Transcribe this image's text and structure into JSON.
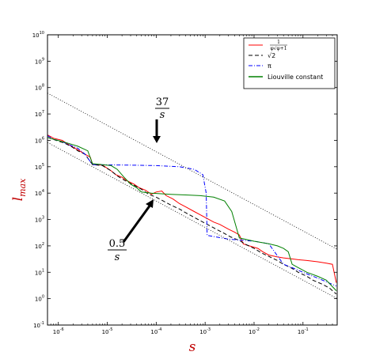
{
  "chart_data": {
    "type": "line",
    "title": "",
    "xlabel": "s",
    "ylabel": "l_max",
    "xscale": "log",
    "yscale": "log",
    "xlim": [
      6e-07,
      0.5
    ],
    "ylim": [
      0.1,
      10000000000.0
    ],
    "grid": false,
    "legend_position": "top-right",
    "x_tick_labels": [
      "10-6",
      "10-5",
      "10-4",
      "10-3",
      "10-2",
      "10-1"
    ],
    "y_tick_labels": [
      "10-1",
      "100",
      "101",
      "102",
      "103",
      "104",
      "105",
      "106",
      "107",
      "108",
      "109",
      "1010"
    ],
    "series": [
      {
        "name": "1/(φ√(φ+1))",
        "color": "#ff0000",
        "style": "solid",
        "points": [
          [
            6e-07,
            1600000.0
          ],
          [
            8e-07,
            1200000.0
          ],
          [
            1.2e-06,
            1000000.0
          ],
          [
            1.6e-06,
            700000.0
          ],
          [
            2e-06,
            550000.0
          ],
          [
            2.7e-06,
            400000.0
          ],
          [
            3.5e-06,
            300000.0
          ],
          [
            4.5e-06,
            230000.0
          ],
          [
            5e-06,
            120000.0
          ],
          [
            8e-06,
            115000.0
          ],
          [
            1.2e-05,
            70000.0
          ],
          [
            1.5e-05,
            50000.0
          ],
          [
            2e-05,
            40000.0
          ],
          [
            2.5e-05,
            30000.0
          ],
          [
            3.5e-05,
            22000.0
          ],
          [
            4.5e-05,
            16000.0
          ],
          [
            6e-05,
            13000.0
          ],
          [
            8e-05,
            9000.0
          ],
          [
            0.0001,
            11000.0
          ],
          [
            0.00013,
            12000.0
          ],
          [
            0.00016,
            8000.0
          ],
          [
            0.00022,
            6000.0
          ],
          [
            0.0003,
            4000.0
          ],
          [
            0.0004,
            3000.0
          ],
          [
            0.0006,
            2000.0
          ],
          [
            0.0008,
            1500.0
          ],
          [
            0.001,
            1200.0
          ],
          [
            0.0015,
            800
          ],
          [
            0.002,
            650
          ],
          [
            0.003,
            430
          ],
          [
            0.004,
            330
          ],
          [
            0.005,
            260
          ],
          [
            0.006,
            120
          ],
          [
            0.008,
            100
          ],
          [
            0.012,
            80
          ],
          [
            0.015,
            60
          ],
          [
            0.02,
            45
          ],
          [
            0.03,
            38
          ],
          [
            0.04,
            35
          ],
          [
            0.06,
            32
          ],
          [
            0.08,
            30
          ],
          [
            0.12,
            28
          ],
          [
            0.2,
            25
          ],
          [
            0.3,
            22
          ],
          [
            0.4,
            20
          ],
          [
            0.48,
            4
          ]
        ]
      },
      {
        "name": "√2",
        "color": "#000000",
        "style": "dashed",
        "points": [
          [
            6e-07,
            1300000.0
          ],
          [
            9e-07,
            1000000.0
          ],
          [
            1.3e-06,
            800000.0
          ],
          [
            1.8e-06,
            600000.0
          ],
          [
            2.5e-06,
            400000.0
          ],
          [
            3.5e-06,
            300000.0
          ],
          [
            5e-06,
            120000.0
          ],
          [
            8e-06,
            110000.0
          ],
          [
            1.2e-05,
            70000.0
          ],
          [
            1.6e-05,
            45000.0
          ],
          [
            2.3e-05,
            30000.0
          ],
          [
            3.5e-05,
            20000.0
          ],
          [
            5e-05,
            14000.0
          ],
          [
            7e-05,
            9000.0
          ],
          [
            0.0001,
            7000.0
          ],
          [
            0.00014,
            5000.0
          ],
          [
            0.0002,
            3500.0
          ],
          [
            0.0003,
            2500.0
          ],
          [
            0.0004,
            1800.0
          ],
          [
            0.0006,
            1200.0
          ],
          [
            0.0008,
            900
          ],
          [
            0.0012,
            600
          ],
          [
            0.0016,
            450
          ],
          [
            0.0023,
            320
          ],
          [
            0.0033,
            220
          ],
          [
            0.005,
            160
          ],
          [
            0.007,
            110
          ],
          [
            0.01,
            80
          ],
          [
            0.014,
            55
          ],
          [
            0.02,
            40
          ],
          [
            0.03,
            28
          ],
          [
            0.04,
            20
          ],
          [
            0.06,
            14
          ],
          [
            0.08,
            10
          ],
          [
            0.12,
            7
          ],
          [
            0.16,
            5
          ],
          [
            0.25,
            3.5
          ],
          [
            0.35,
            2.5
          ],
          [
            0.48,
            1.5
          ]
        ]
      },
      {
        "name": "π",
        "color": "#0000ff",
        "style": "dashdot",
        "points": [
          [
            6e-07,
            1500000.0
          ],
          [
            8e-07,
            1100000.0
          ],
          [
            1.2e-06,
            900000.0
          ],
          [
            1.6e-06,
            700000.0
          ],
          [
            2.5e-06,
            500000.0
          ],
          [
            3.5e-06,
            300000.0
          ],
          [
            5e-06,
            120000.0
          ],
          [
            3e-05,
            115000.0
          ],
          [
            0.0001,
            110000.0
          ],
          [
            0.0003,
            100000.0
          ],
          [
            0.0006,
            80000.0
          ],
          [
            0.0009,
            50000.0
          ],
          [
            0.00105,
            10000.0
          ],
          [
            0.0011,
            250
          ],
          [
            0.003,
            180
          ],
          [
            0.01,
            150
          ],
          [
            0.02,
            120
          ],
          [
            0.04,
            20
          ],
          [
            0.06,
            15
          ],
          [
            0.1,
            10
          ],
          [
            0.2,
            6
          ],
          [
            0.48,
            3
          ]
        ]
      },
      {
        "name": "Liouville constant",
        "color": "#008000",
        "style": "solid",
        "points": [
          [
            6e-07,
            1300000.0
          ],
          [
            8e-07,
            1100000.0
          ],
          [
            1.5e-06,
            800000.0
          ],
          [
            2.5e-06,
            600000.0
          ],
          [
            4e-06,
            400000.0
          ],
          [
            5e-06,
            130000.0
          ],
          [
            8e-06,
            120000.0
          ],
          [
            1.2e-05,
            110000.0
          ],
          [
            1.6e-05,
            80000.0
          ],
          [
            2.2e-05,
            40000.0
          ],
          [
            3e-05,
            22000.0
          ],
          [
            4e-05,
            16000.0
          ],
          [
            5e-05,
            11000.0
          ],
          [
            8e-05,
            10000.0
          ],
          [
            0.0002,
            9000.0
          ],
          [
            0.0004,
            8500.0
          ],
          [
            0.0008,
            8000.0
          ],
          [
            0.0015,
            7000.0
          ],
          [
            0.0025,
            5000.0
          ],
          [
            0.0035,
            2000.0
          ],
          [
            0.005,
            200
          ],
          [
            0.01,
            150
          ],
          [
            0.02,
            120
          ],
          [
            0.03,
            100
          ],
          [
            0.04,
            80
          ],
          [
            0.05,
            60
          ],
          [
            0.06,
            20
          ],
          [
            0.08,
            15
          ],
          [
            0.12,
            10
          ],
          [
            0.2,
            7
          ],
          [
            0.3,
            5
          ],
          [
            0.48,
            2
          ]
        ]
      },
      {
        "name": "",
        "color": "#000000",
        "style": "dotted",
        "points": [
          [
            6e-07,
            61700000.0
          ],
          [
            0.5,
            74
          ]
        ]
      },
      {
        "name": "",
        "color": "#000000",
        "style": "dotted",
        "points": [
          [
            6e-07,
            833000.0
          ],
          [
            0.5,
            1
          ]
        ]
      }
    ],
    "annotations": [
      {
        "numerator": "37",
        "denominator": "s",
        "arrow": "down"
      },
      {
        "numerator": "0.5",
        "denominator": "s",
        "arrow": "up-right"
      }
    ]
  }
}
